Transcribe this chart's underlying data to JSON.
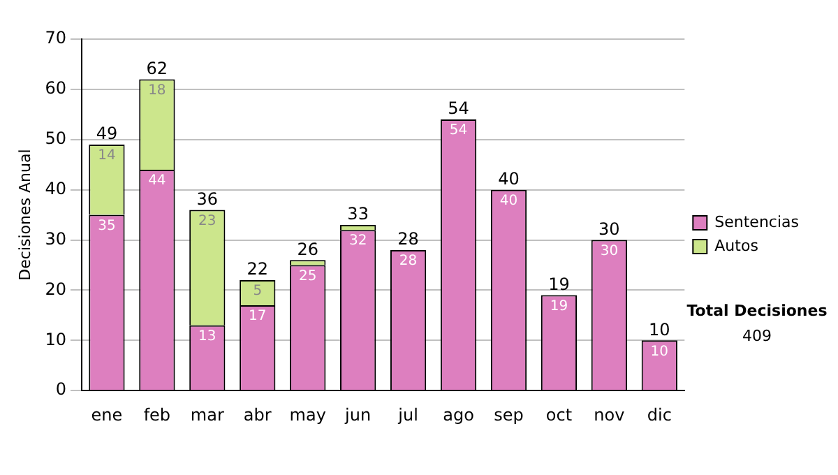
{
  "chart_data": {
    "type": "bar",
    "ylabel": "Decisiones Anual",
    "categories": [
      "ene",
      "feb",
      "mar",
      "abr",
      "may",
      "jun",
      "jul",
      "ago",
      "sep",
      "oct",
      "nov",
      "dic"
    ],
    "series": [
      {
        "name": "Sentencias",
        "color": "#dd7fbf",
        "values": [
          35,
          44,
          13,
          17,
          25,
          32,
          28,
          54,
          40,
          19,
          30,
          10
        ],
        "value_labels": [
          "35",
          "44",
          "13",
          "17",
          "25",
          "32",
          "28",
          "54",
          "40",
          "19",
          "30",
          "10"
        ]
      },
      {
        "name": "Autos",
        "color": "#cce68c",
        "values": [
          14,
          18,
          23,
          5,
          1,
          1,
          0,
          0,
          0,
          0,
          0,
          0
        ],
        "value_labels": [
          "14",
          "18",
          "23",
          "5",
          null,
          null,
          null,
          null,
          null,
          null,
          null,
          null
        ]
      }
    ],
    "stacked": true,
    "totals": [
      "49",
      "62",
      "36",
      "22",
      "26",
      "33",
      "28",
      "54",
      "40",
      "19",
      "30",
      "10"
    ],
    "ylim": [
      0,
      70
    ],
    "yticks": [
      0,
      10,
      20,
      30,
      40,
      50,
      60,
      70
    ],
    "grid": "y",
    "legend": "right",
    "annotations": [
      "Total Decisiones",
      "409"
    ]
  }
}
